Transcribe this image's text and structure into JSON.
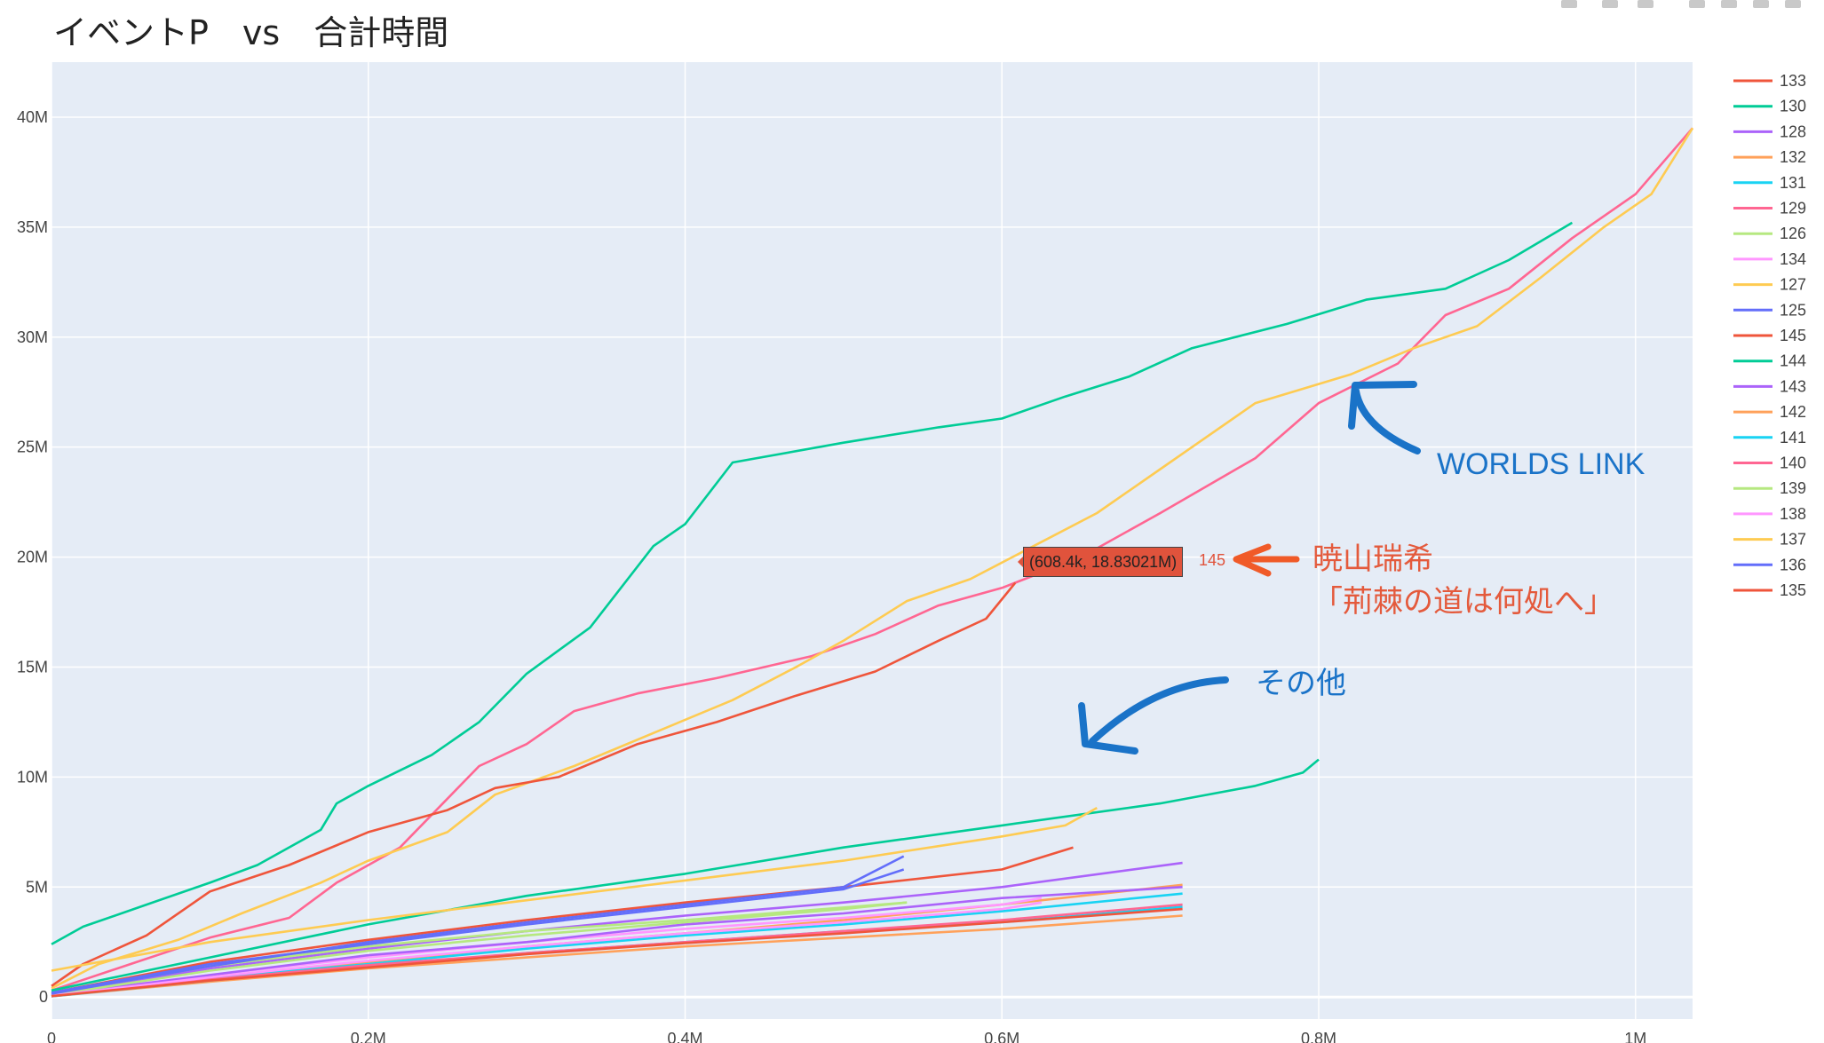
{
  "chart_data": {
    "type": "line",
    "title": "イベントP　vs　合計時間",
    "xlabel": "",
    "ylabel": "",
    "xlim": [
      0,
      1036000
    ],
    "ylim": [
      -1000000,
      42500000
    ],
    "x_ticks": [
      {
        "value": 0,
        "label": "0"
      },
      {
        "value": 200000,
        "label": "0.2M"
      },
      {
        "value": 400000,
        "label": "0.4M"
      },
      {
        "value": 600000,
        "label": "0.6M"
      },
      {
        "value": 800000,
        "label": "0.8M"
      },
      {
        "value": 1000000,
        "label": "1M"
      }
    ],
    "y_ticks": [
      {
        "value": 0,
        "label": "0"
      },
      {
        "value": 5000000,
        "label": "5M"
      },
      {
        "value": 10000000,
        "label": "10M"
      },
      {
        "value": 15000000,
        "label": "15M"
      },
      {
        "value": 20000000,
        "label": "20M"
      },
      {
        "value": 25000000,
        "label": "25M"
      },
      {
        "value": 30000000,
        "label": "30M"
      },
      {
        "value": 35000000,
        "label": "35M"
      },
      {
        "value": 40000000,
        "label": "40M"
      }
    ],
    "grid": true,
    "legend_position": "right",
    "series": [
      {
        "name": "133",
        "color": "#ef553b",
        "x": [
          0,
          100000,
          200000,
          300000,
          400000,
          500000,
          600000,
          645000
        ],
        "y": [
          200000,
          1600000,
          2600000,
          3500000,
          4300000,
          5000000,
          5800000,
          6800000
        ]
      },
      {
        "name": "130",
        "color": "#00cc96",
        "x": [
          0,
          20000,
          60000,
          100000,
          130000,
          170000,
          180000,
          200000,
          240000,
          270000,
          300000,
          340000,
          380000,
          400000,
          430000,
          500000,
          560000,
          600000,
          640000,
          680000,
          720000,
          780000,
          830000,
          880000,
          920000,
          960000
        ],
        "y": [
          2400000,
          3200000,
          4200000,
          5200000,
          6000000,
          7600000,
          8800000,
          9600000,
          11000000,
          12500000,
          14700000,
          16800000,
          20500000,
          21500000,
          24300000,
          25200000,
          25900000,
          26300000,
          27300000,
          28200000,
          29500000,
          30600000,
          31700000,
          32200000,
          33500000,
          35200000
        ]
      },
      {
        "name": "128",
        "color": "#ab63fa",
        "x": [
          0,
          100000,
          200000,
          300000,
          400000,
          500000,
          600000,
          714000
        ],
        "y": [
          100000,
          1300000,
          2200000,
          3000000,
          3700000,
          4300000,
          5000000,
          6100000
        ]
      },
      {
        "name": "132",
        "color": "#ffa15a",
        "x": [
          0,
          100000,
          200000,
          300000,
          400000,
          500000,
          600000,
          714000
        ],
        "y": [
          50000,
          900000,
          1600000,
          2300000,
          2900000,
          3500000,
          4200000,
          5100000
        ]
      },
      {
        "name": "131",
        "color": "#19d3f3",
        "x": [
          0,
          100000,
          200000,
          300000,
          400000,
          500000,
          600000,
          714000
        ],
        "y": [
          50000,
          850000,
          1500000,
          2200000,
          2800000,
          3300000,
          3900000,
          4700000
        ]
      },
      {
        "name": "129",
        "color": "#ff6692",
        "x": [
          0,
          50000,
          100000,
          150000,
          180000,
          220000,
          270000,
          300000,
          330000,
          370000,
          420000,
          480000,
          520000,
          560000,
          600000,
          650000,
          700000,
          760000,
          800000,
          850000,
          880000,
          920000,
          960000,
          1000000,
          1036000
        ],
        "y": [
          300000,
          1500000,
          2700000,
          3600000,
          5200000,
          6800000,
          10500000,
          11500000,
          13000000,
          13800000,
          14500000,
          15500000,
          16500000,
          17800000,
          18600000,
          20000000,
          22000000,
          24500000,
          27000000,
          28800000,
          31000000,
          32200000,
          34500000,
          36500000,
          39500000
        ]
      },
      {
        "name": "126",
        "color": "#b6e880",
        "x": [
          0,
          100000,
          200000,
          300000,
          400000,
          540000
        ],
        "y": [
          150000,
          1400000,
          2300000,
          3000000,
          3500000,
          4300000
        ]
      },
      {
        "name": "134",
        "color": "#ff97ff",
        "x": [
          0,
          100000,
          200000,
          300000,
          400000,
          500000,
          600000,
          625000
        ],
        "y": [
          100000,
          1000000,
          1800000,
          2500000,
          3100000,
          3600000,
          4200000,
          4500000
        ]
      },
      {
        "name": "127",
        "color": "#fecb52",
        "x": [
          0,
          30000,
          80000,
          120000,
          170000,
          200000,
          250000,
          280000,
          330000,
          380000,
          430000,
          470000,
          500000,
          540000,
          580000,
          620000,
          660000,
          700000,
          760000,
          820000,
          860000,
          900000,
          940000,
          980000,
          1010000,
          1036000
        ],
        "y": [
          400000,
          1500000,
          2600000,
          3800000,
          5200000,
          6200000,
          7500000,
          9200000,
          10500000,
          12000000,
          13500000,
          15000000,
          16200000,
          18000000,
          19000000,
          20500000,
          22000000,
          24000000,
          27000000,
          28300000,
          29500000,
          30500000,
          32700000,
          35000000,
          36500000,
          39500000
        ]
      },
      {
        "name": "125",
        "color": "#636efa",
        "x": [
          0,
          100000,
          200000,
          300000,
          400000,
          500000,
          538000
        ],
        "y": [
          200000,
          1500000,
          2400000,
          3300000,
          4100000,
          4900000,
          5800000
        ]
      },
      {
        "name": "145",
        "color": "#ef553b",
        "x": [
          0,
          20000,
          60000,
          100000,
          150000,
          200000,
          250000,
          280000,
          320000,
          370000,
          420000,
          470000,
          520000,
          560000,
          590000,
          608400
        ],
        "y": [
          500000,
          1500000,
          2800000,
          4800000,
          6000000,
          7500000,
          8500000,
          9500000,
          10000000,
          11500000,
          12500000,
          13700000,
          14800000,
          16200000,
          17200000,
          18830210
        ]
      },
      {
        "name": "144",
        "color": "#00cc96",
        "x": [
          0,
          100000,
          200000,
          300000,
          400000,
          500000,
          600000,
          700000,
          760000,
          790000,
          800000
        ],
        "y": [
          300000,
          1800000,
          3300000,
          4600000,
          5600000,
          6800000,
          7800000,
          8800000,
          9600000,
          10200000,
          10800000
        ]
      },
      {
        "name": "143",
        "color": "#ab63fa",
        "x": [
          0,
          100000,
          200000,
          300000,
          400000,
          500000,
          600000,
          714000
        ],
        "y": [
          80000,
          1000000,
          1900000,
          2500000,
          3300000,
          3800000,
          4500000,
          5000000
        ]
      },
      {
        "name": "142",
        "color": "#ffa15a",
        "x": [
          0,
          100000,
          200000,
          300000,
          400000,
          500000,
          600000,
          714000
        ],
        "y": [
          30000,
          700000,
          1300000,
          1800000,
          2300000,
          2700000,
          3100000,
          3700000
        ]
      },
      {
        "name": "141",
        "color": "#19d3f3",
        "x": [
          0,
          100000,
          200000,
          300000,
          400000,
          500000,
          600000,
          714000
        ],
        "y": [
          30000,
          750000,
          1400000,
          2000000,
          2500000,
          3000000,
          3400000,
          4100000
        ]
      },
      {
        "name": "140",
        "color": "#ff6692",
        "x": [
          0,
          100000,
          200000,
          300000,
          400000,
          500000,
          600000,
          714000
        ],
        "y": [
          40000,
          800000,
          1450000,
          2000000,
          2500000,
          3000000,
          3500000,
          4200000
        ]
      },
      {
        "name": "139",
        "color": "#b6e880",
        "x": [
          0,
          100000,
          200000,
          300000,
          400000,
          500000,
          540000
        ],
        "y": [
          80000,
          1200000,
          2100000,
          2800000,
          3400000,
          4000000,
          4300000
        ]
      },
      {
        "name": "138",
        "color": "#ff97ff",
        "x": [
          0,
          100000,
          200000,
          300000,
          400000,
          500000,
          600000,
          625000
        ],
        "y": [
          60000,
          900000,
          1650000,
          2300000,
          2900000,
          3400000,
          4000000,
          4300000
        ]
      },
      {
        "name": "137",
        "color": "#fecb52",
        "x": [
          0,
          100000,
          200000,
          300000,
          400000,
          500000,
          600000,
          640000,
          660000
        ],
        "y": [
          1200000,
          2500000,
          3500000,
          4400000,
          5300000,
          6200000,
          7300000,
          7800000,
          8600000
        ]
      },
      {
        "name": "136",
        "color": "#636efa",
        "x": [
          0,
          100000,
          200000,
          300000,
          400000,
          500000,
          538000
        ],
        "y": [
          150000,
          1400000,
          2500000,
          3400000,
          4200000,
          5000000,
          6400000
        ]
      },
      {
        "name": "135",
        "color": "#ef553b",
        "x": [
          0,
          100000,
          200000,
          300000,
          400000,
          500000,
          600000,
          714000
        ],
        "y": [
          40000,
          750000,
          1350000,
          1950000,
          2450000,
          2900000,
          3400000,
          4000000
        ]
      }
    ]
  },
  "hover": {
    "label": "(608.4k, 18.83021M)",
    "series_name": "145"
  },
  "annotations": {
    "worlds_link": "WORLDS LINK",
    "akiyama_line1": "暁山瑞希",
    "akiyama_line2": "「荊棘の道は何処へ」",
    "other": "その他"
  }
}
